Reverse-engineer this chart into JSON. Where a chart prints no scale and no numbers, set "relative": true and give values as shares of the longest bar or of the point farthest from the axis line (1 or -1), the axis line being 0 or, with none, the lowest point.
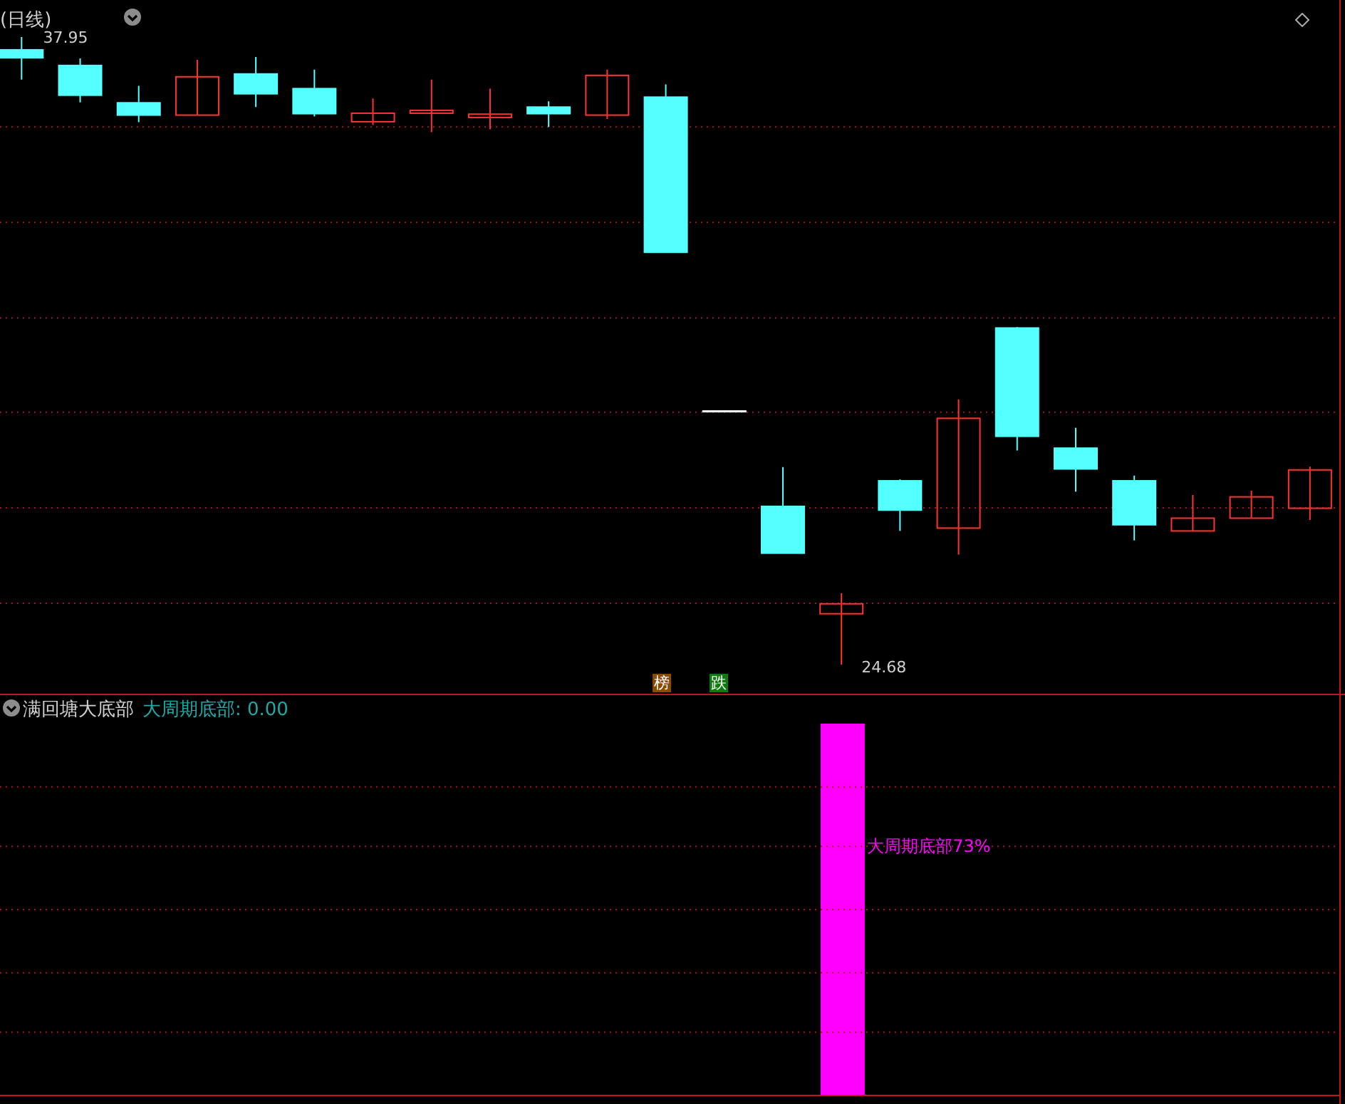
{
  "chart_data": [
    {
      "type": "candlestick",
      "title": "(日线)",
      "categories": [
        null,
        null,
        null,
        null,
        null,
        null,
        null,
        null,
        null,
        null,
        null,
        null,
        null,
        null,
        null,
        null,
        null,
        null,
        null,
        null,
        null,
        null,
        null
      ],
      "ohlc": [
        [
          37.68,
          37.95,
          37.05,
          37.51
        ],
        [
          37.35,
          37.5,
          36.57,
          36.72
        ],
        [
          36.56,
          36.92,
          36.15,
          36.3
        ],
        [
          36.3,
          37.47,
          36.3,
          37.11
        ],
        [
          37.17,
          37.53,
          36.47,
          36.75
        ],
        [
          36.86,
          37.26,
          36.27,
          36.33
        ],
        [
          36.16,
          36.65,
          36.09,
          36.34
        ],
        [
          36.34,
          37.05,
          35.94,
          36.4
        ],
        [
          36.25,
          36.86,
          36.0,
          36.32
        ],
        [
          36.47,
          36.59,
          36.05,
          36.33
        ],
        [
          36.3,
          37.26,
          36.22,
          37.14
        ],
        [
          36.68,
          36.95,
          33.4,
          33.4
        ],
        [
          30.04,
          30.04,
          30.04,
          30.04
        ],
        [
          28.03,
          28.86,
          27.04,
          27.04
        ],
        [
          25.76,
          26.19,
          24.68,
          25.97
        ],
        [
          28.57,
          28.6,
          27.51,
          27.95
        ],
        [
          27.57,
          30.29,
          27.01,
          29.89
        ],
        [
          31.8,
          31.82,
          29.21,
          29.51
        ],
        [
          29.26,
          29.69,
          28.34,
          28.82
        ],
        [
          28.57,
          28.68,
          27.31,
          27.64
        ],
        [
          27.51,
          28.27,
          27.51,
          27.78
        ],
        [
          27.78,
          28.36,
          27.78,
          28.23
        ],
        [
          27.99,
          28.87,
          27.74,
          28.8
        ]
      ],
      "colors": [
        "#54ffff",
        "#54ffff",
        "#54ffff",
        "#ff3232",
        "#54ffff",
        "#54ffff",
        "#ff3232",
        "#ff3232",
        "#ff3232",
        "#54ffff",
        "#ff3232",
        "#54ffff",
        "#ffffff",
        "#54ffff",
        "#ff3232",
        "#54ffff",
        "#ff3232",
        "#54ffff",
        "#54ffff",
        "#54ffff",
        "#ff3232",
        "#ff3232",
        "#ff3232"
      ],
      "yticks": [
        {
          "value": 36.05,
          "label": null
        },
        {
          "value": 34.03,
          "label": null
        },
        {
          "value": 32.01,
          "label": null
        },
        {
          "value": 30.02,
          "label": null
        },
        {
          "value": 28.0,
          "label": null
        },
        {
          "value": 25.98,
          "label": null
        }
      ],
      "grid": "y",
      "tick_labels": false,
      "annotations": [
        "37.95",
        "24.68",
        "榜",
        "跌"
      ]
    },
    {
      "type": "bar",
      "title": "满回塘大底部",
      "subtitle": "大周期底部: 0.00",
      "categories": [
        null,
        null,
        null,
        null,
        null,
        null,
        null,
        null,
        null,
        null,
        null,
        null,
        null,
        null,
        null,
        null,
        null,
        null,
        null,
        null,
        null,
        null,
        null
      ],
      "values": [
        null,
        null,
        null,
        null,
        null,
        null,
        null,
        null,
        null,
        null,
        null,
        null,
        null,
        null,
        1,
        null,
        null,
        null,
        null,
        null,
        null,
        null,
        null
      ],
      "color": "#ff00ff",
      "relative": true,
      "ref_lines": [
        {
          "axis": "y",
          "value": 0.17,
          "color": "#a01818",
          "line_style": "dotted"
        },
        {
          "axis": "y",
          "value": 0.33,
          "color": "#a01818",
          "line_style": "dotted"
        },
        {
          "axis": "y",
          "value": 0.5,
          "color": "#a01818",
          "line_style": "dotted"
        },
        {
          "axis": "y",
          "value": 0.67,
          "color": "#a01818",
          "line_style": "dotted"
        },
        {
          "axis": "y",
          "value": 0.83,
          "color": "#a01818",
          "line_style": "dotted"
        }
      ],
      "tick_labels": false,
      "annotations": [
        "大周期底部73%"
      ]
    }
  ]
}
